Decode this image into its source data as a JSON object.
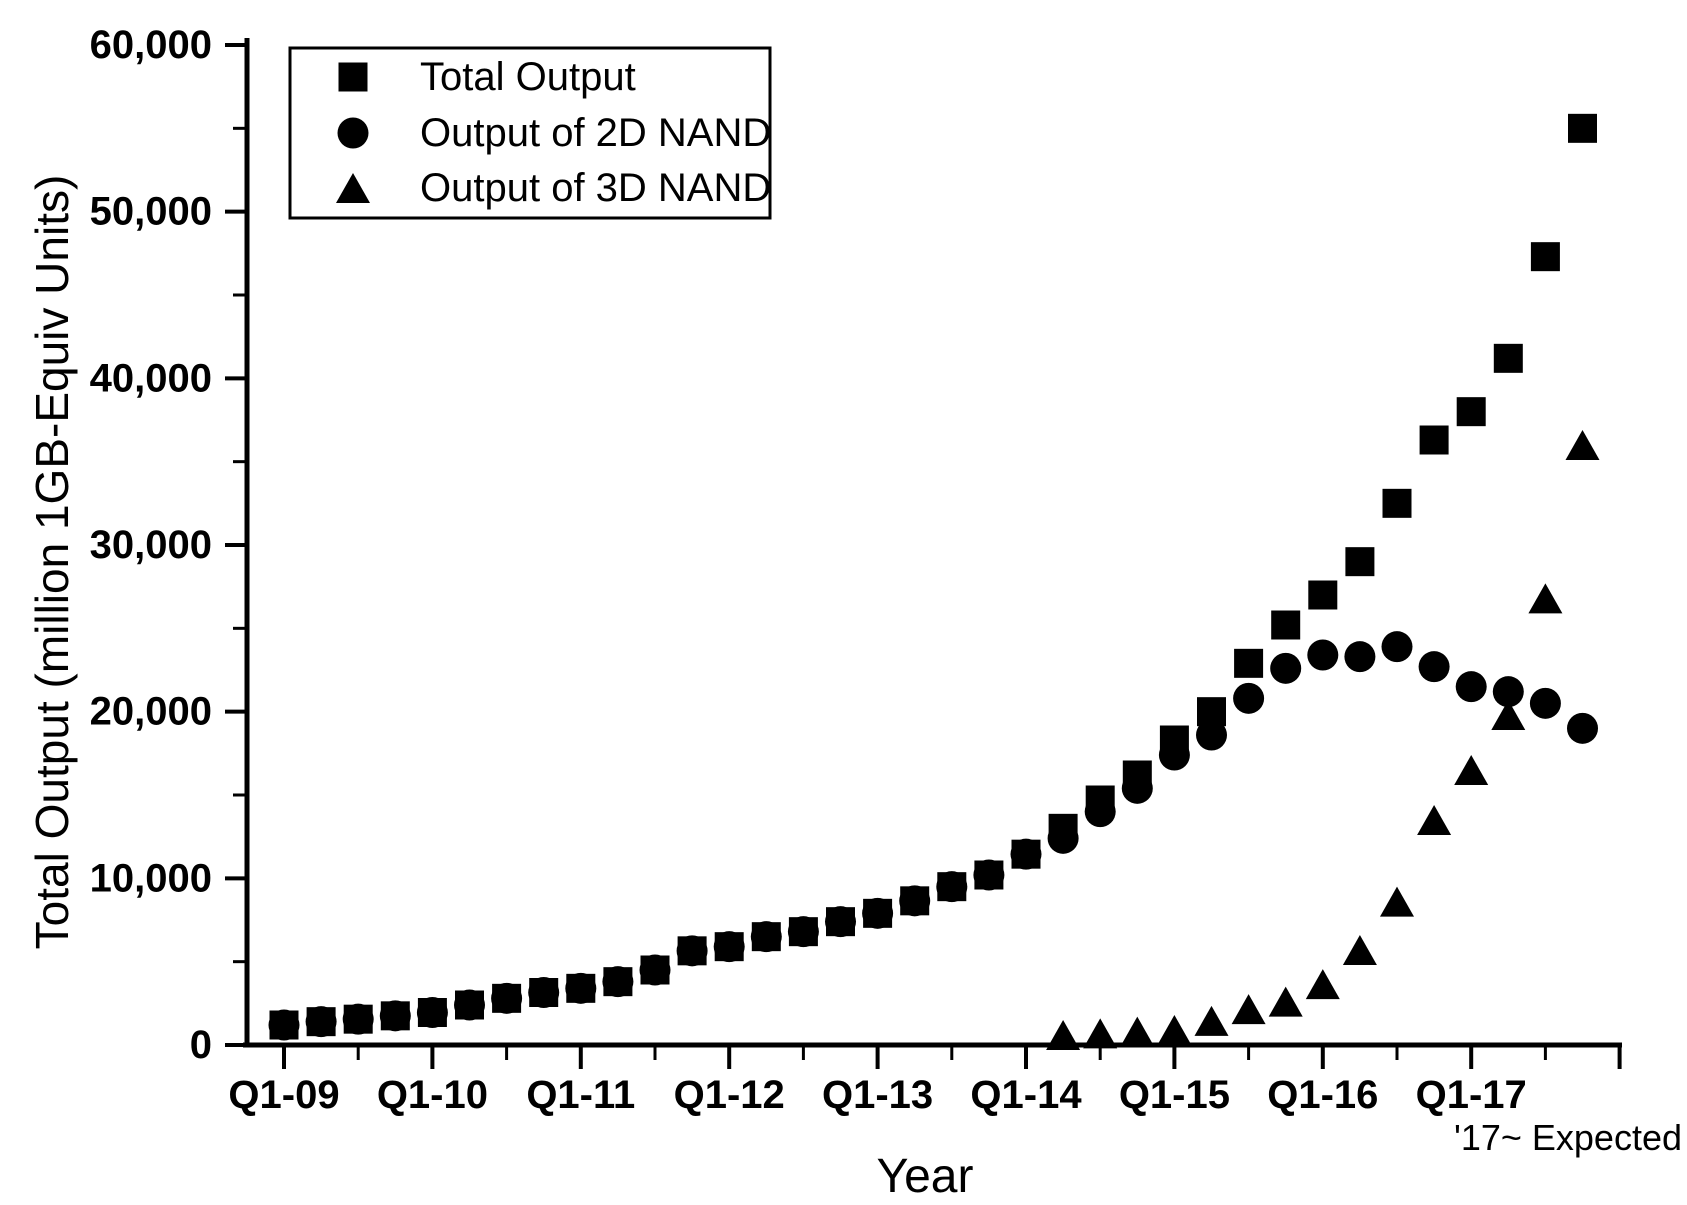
{
  "legend": {
    "items": [
      {
        "label": "Total Output",
        "marker": "square"
      },
      {
        "label": "Output of 2D NAND",
        "marker": "circle"
      },
      {
        "label": "Output of 3D NAND",
        "marker": "triangle"
      }
    ]
  },
  "chart_data": {
    "type": "scatter",
    "title": "",
    "xlabel": "Year",
    "ylabel": "Total Output (million 1GB-Equiv Units)",
    "annotation": "'17~ Expected",
    "ylim": [
      0,
      60000
    ],
    "grid": false,
    "legend_position": "top-left",
    "marker_color": "#000000",
    "background_color": "#ffffff",
    "y_ticks": [
      0,
      10000,
      20000,
      30000,
      40000,
      50000,
      60000
    ],
    "y_tick_labels": [
      "0",
      "10,000",
      "20,000",
      "30,000",
      "40,000",
      "50,000",
      "60,000"
    ],
    "y_minor_ticks": [
      5000,
      15000,
      25000,
      35000,
      45000,
      55000
    ],
    "x_tick_labels": [
      "Q1-09",
      "Q1-10",
      "Q1-11",
      "Q1-12",
      "Q1-13",
      "Q1-14",
      "Q1-15",
      "Q1-16",
      "Q1-17"
    ],
    "quarters": [
      "Q1-09",
      "Q2-09",
      "Q3-09",
      "Q4-09",
      "Q1-10",
      "Q2-10",
      "Q3-10",
      "Q4-10",
      "Q1-11",
      "Q2-11",
      "Q3-11",
      "Q4-11",
      "Q1-12",
      "Q2-12",
      "Q3-12",
      "Q4-12",
      "Q1-13",
      "Q2-13",
      "Q3-13",
      "Q4-13",
      "Q1-14",
      "Q2-14",
      "Q3-14",
      "Q4-14",
      "Q1-15",
      "Q2-15",
      "Q3-15",
      "Q4-15",
      "Q1-16",
      "Q2-16",
      "Q3-16",
      "Q4-16",
      "Q1-17",
      "Q2-17",
      "Q3-17",
      "Q4-17"
    ],
    "series": [
      {
        "name": "Total Output",
        "marker": "square",
        "values": [
          1200,
          1400,
          1550,
          1750,
          1950,
          2400,
          2800,
          3150,
          3400,
          3800,
          4500,
          5650,
          5900,
          6500,
          6800,
          7400,
          7900,
          8650,
          9500,
          10200,
          11450,
          13000,
          14700,
          16200,
          18300,
          20000,
          22900,
          25200,
          27000,
          29000,
          32500,
          36300,
          38000,
          41200,
          47300,
          55000
        ]
      },
      {
        "name": "Output of 2D NAND",
        "marker": "circle",
        "values": [
          1200,
          1400,
          1550,
          1750,
          1950,
          2400,
          2800,
          3150,
          3400,
          3800,
          4500,
          5650,
          5900,
          6500,
          6800,
          7400,
          7900,
          8650,
          9500,
          10200,
          11450,
          12400,
          14000,
          15400,
          17400,
          18600,
          20800,
          22600,
          23400,
          23300,
          23900,
          22700,
          21500,
          21200,
          20500,
          19000
        ]
      },
      {
        "name": "Output of 3D NAND",
        "marker": "triangle",
        "values": [
          null,
          null,
          null,
          null,
          null,
          null,
          null,
          null,
          null,
          null,
          null,
          null,
          null,
          null,
          null,
          null,
          null,
          null,
          null,
          null,
          null,
          600,
          700,
          800,
          900,
          1450,
          2150,
          2600,
          3650,
          5700,
          8600,
          13500,
          16500,
          19800,
          26800,
          36000
        ]
      }
    ]
  }
}
